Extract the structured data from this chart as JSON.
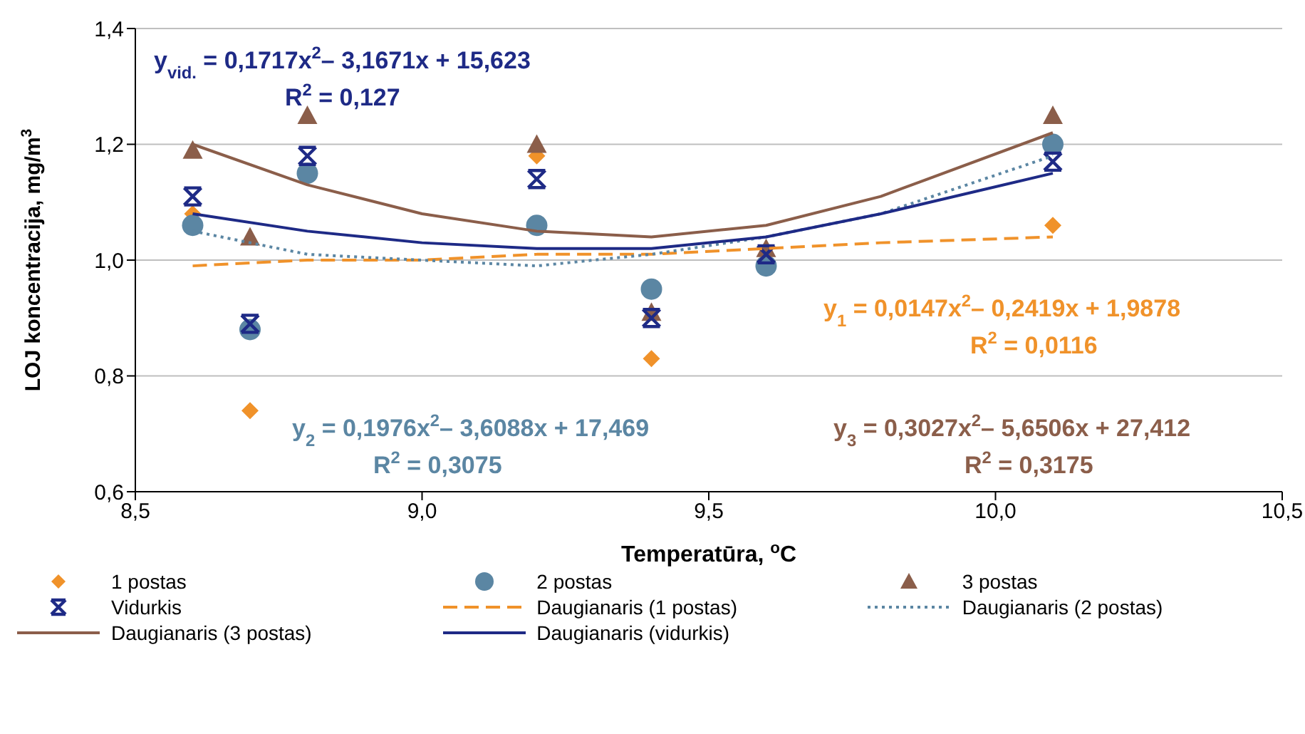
{
  "chart_data": {
    "type": "scatter",
    "xlabel": "Temperatūra, $^{o}$C",
    "ylabel": "LOJ koncentracija, mg/m$^{3}$",
    "x": [
      8.6,
      8.7,
      8.8,
      9.2,
      9.4,
      9.6,
      10.1
    ],
    "series": [
      {
        "name": "1 postas",
        "color": "#f0922a",
        "marker": "diamond",
        "values": [
          1.08,
          0.74,
          null,
          1.18,
          0.83,
          null,
          1.06
        ]
      },
      {
        "name": "2 postas",
        "color": "#5b86a3",
        "marker": "circle",
        "values": [
          1.06,
          0.88,
          1.15,
          1.06,
          0.95,
          0.99,
          1.2
        ]
      },
      {
        "name": "3 postas",
        "color": "#8b5e4a",
        "marker": "triangle",
        "values": [
          1.19,
          1.04,
          1.25,
          1.2,
          0.91,
          1.02,
          1.25
        ]
      },
      {
        "name": "Vidurkis",
        "color": "#1e2a86",
        "marker": "cross",
        "values": [
          1.11,
          0.89,
          1.18,
          1.14,
          0.9,
          1.01,
          1.17
        ]
      },
      {
        "name": "Daugianaris (1 postas)",
        "type": "line",
        "color": "#f0922a",
        "line_style": "dashed",
        "marker": "none",
        "x": [
          8.6,
          8.8,
          9.0,
          9.2,
          9.4,
          9.6,
          9.8,
          10.1
        ],
        "values": [
          0.99,
          1.0,
          1.0,
          1.01,
          1.01,
          1.02,
          1.03,
          1.04
        ]
      },
      {
        "name": "Daugianaris (2 postas)",
        "type": "line",
        "color": "#5b86a3",
        "line_style": "dotted",
        "marker": "none",
        "x": [
          8.6,
          8.8,
          9.0,
          9.2,
          9.4,
          9.6,
          9.8,
          10.1
        ],
        "values": [
          1.05,
          1.01,
          1.0,
          0.99,
          1.01,
          1.04,
          1.08,
          1.18
        ]
      },
      {
        "name": "Daugianaris (3 postas)",
        "type": "line",
        "color": "#8b5e4a",
        "line_style": "solid",
        "marker": "none",
        "x": [
          8.6,
          8.8,
          9.0,
          9.2,
          9.4,
          9.6,
          9.8,
          10.1
        ],
        "values": [
          1.2,
          1.13,
          1.08,
          1.05,
          1.04,
          1.06,
          1.11,
          1.22
        ]
      },
      {
        "name": "Daugianaris (vidurkis)",
        "type": "line",
        "color": "#1e2a86",
        "line_style": "solid",
        "marker": "none",
        "x": [
          8.6,
          8.8,
          9.0,
          9.2,
          9.4,
          9.6,
          9.8,
          10.1
        ],
        "values": [
          1.08,
          1.05,
          1.03,
          1.02,
          1.02,
          1.04,
          1.08,
          1.15
        ]
      }
    ],
    "xlim": [
      8.5,
      10.5
    ],
    "xticks": [
      {
        "value": 8.5,
        "label": "8,5"
      },
      {
        "value": 9,
        "label": "9,0"
      },
      {
        "value": 9.5,
        "label": "9,5"
      },
      {
        "value": 10,
        "label": "10,0"
      },
      {
        "value": 10.5,
        "label": "10,5"
      }
    ],
    "ylim": [
      0.6,
      1.4
    ],
    "yticks": [
      {
        "value": 0.6,
        "label": "0,6"
      },
      {
        "value": 0.8,
        "label": "0,8"
      },
      {
        "value": 1.0,
        "label": "1,0"
      },
      {
        "value": 1.2,
        "label": "1,2"
      },
      {
        "value": 1.4,
        "label": "1,4"
      }
    ],
    "grid": "y",
    "legend": "bottom",
    "annotations": [
      "y$_{vid.}$ = 0,1717x$^{2}$– 3,1671x + 15,623",
      "R$^{2}$ = 0,127",
      "y$_{1}$ = 0,0147x$^{2}$– 0,2419x + 1,9878",
      "R$^{2}$ = 0,0116",
      "y$_{2}$ = 0,1976x$^{2}$– 3,6088x + 17,469",
      "R$^{2}$ = 0,3075",
      "y$_{3}$ = 0,3027x$^{2}$– 5,6506x + 27,412",
      "R$^{2}$ = 0,3175"
    ]
  }
}
